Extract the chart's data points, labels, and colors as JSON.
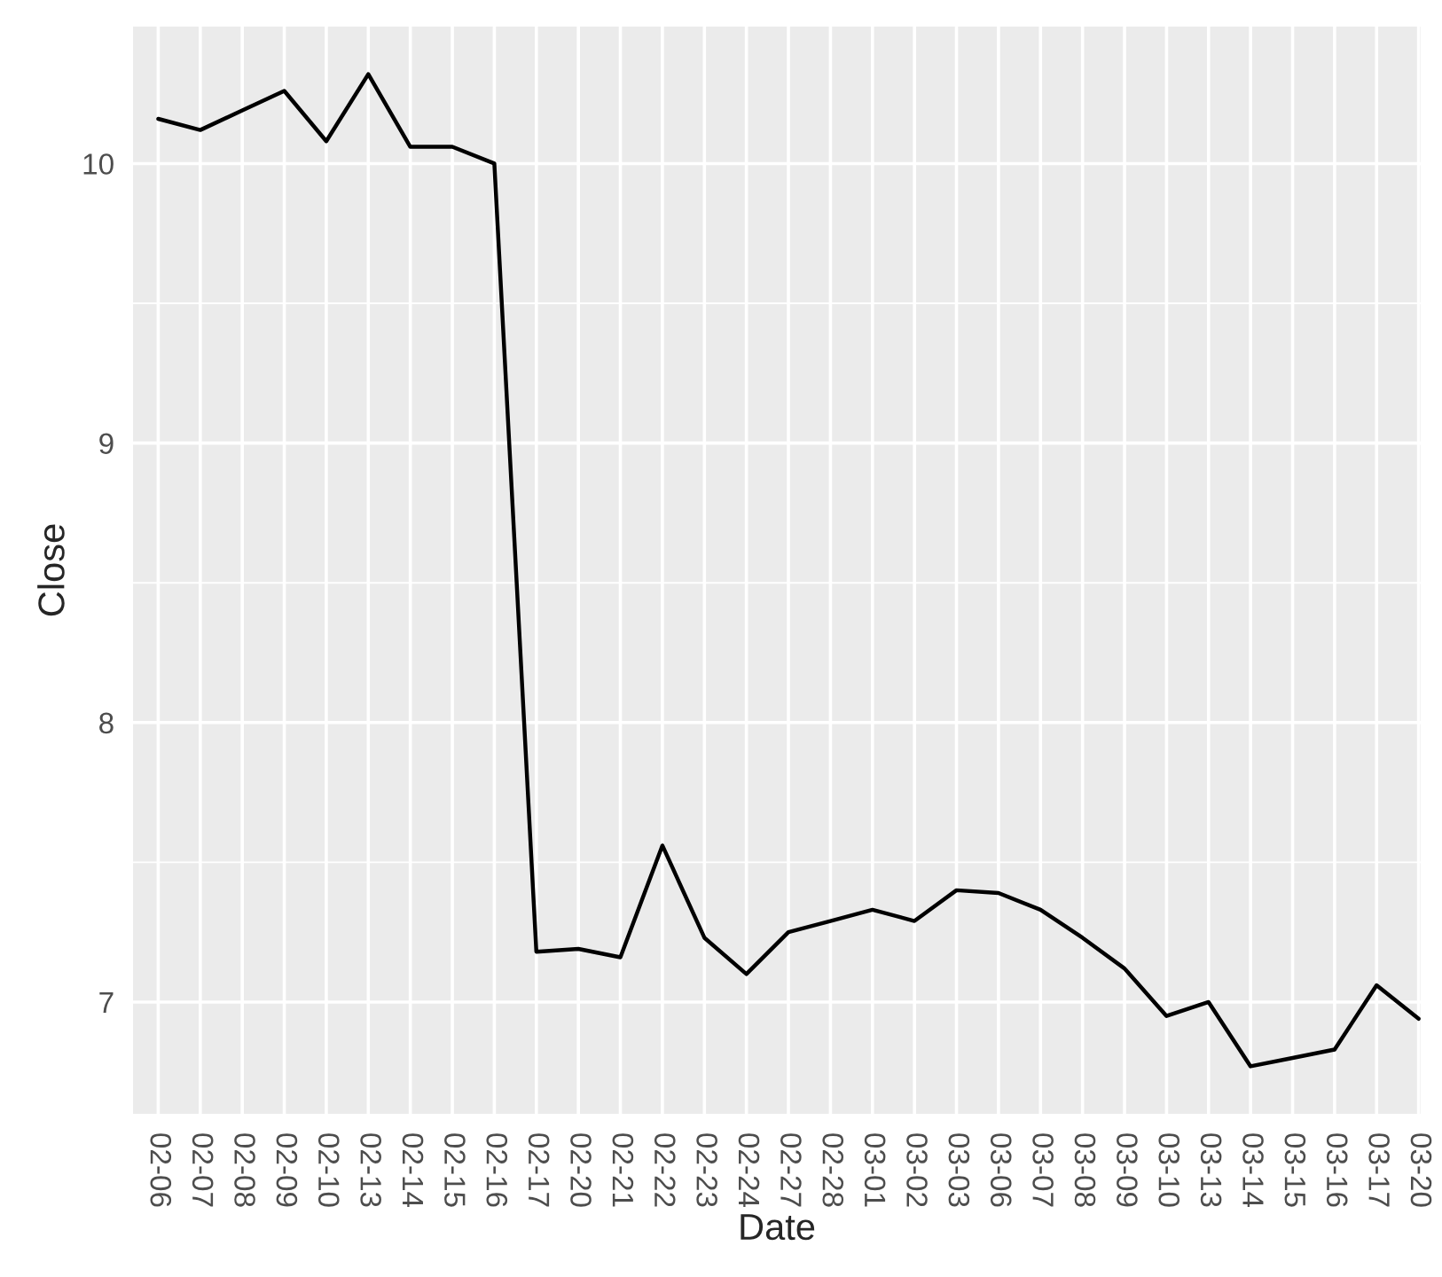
{
  "chart_data": {
    "type": "line",
    "xlabel": "Date",
    "ylabel": "Close",
    "categories": [
      "02-06",
      "02-07",
      "02-08",
      "02-09",
      "02-10",
      "02-13",
      "02-14",
      "02-15",
      "02-16",
      "02-17",
      "02-20",
      "02-21",
      "02-22",
      "02-23",
      "02-24",
      "02-27",
      "02-28",
      "03-01",
      "03-02",
      "03-03",
      "03-06",
      "03-07",
      "03-08",
      "03-09",
      "03-10",
      "03-13",
      "03-14",
      "03-15",
      "03-16",
      "03-17",
      "03-20"
    ],
    "series": [
      {
        "color": "#000000",
        "values": [
          10.16,
          10.12,
          10.19,
          10.26,
          10.08,
          10.32,
          10.06,
          10.06,
          10.0,
          7.18,
          7.19,
          7.16,
          7.56,
          7.23,
          7.1,
          7.25,
          7.29,
          7.33,
          7.29,
          7.4,
          7.39,
          7.33,
          7.23,
          7.12,
          6.95,
          7.0,
          6.77,
          6.8,
          6.83,
          7.06,
          6.94
        ]
      }
    ],
    "ylim": [
      6.6,
      10.49
    ],
    "yticks": [
      7,
      8,
      9,
      10
    ],
    "grid": true
  }
}
